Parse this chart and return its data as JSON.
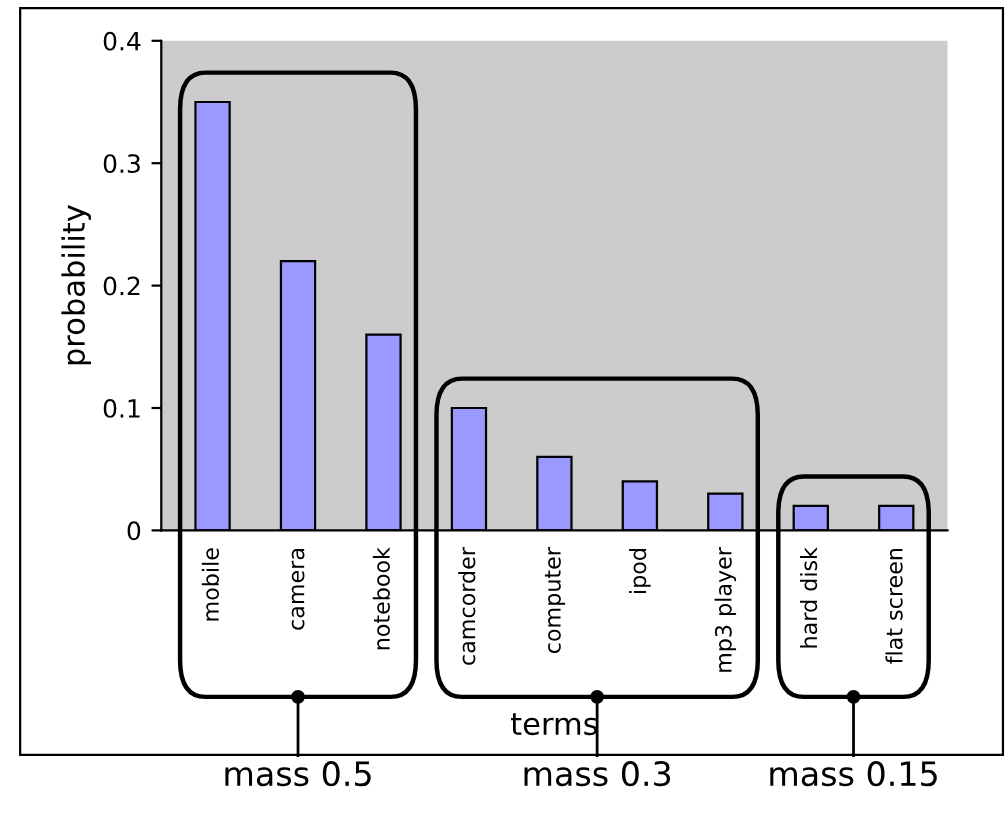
{
  "chart_data": {
    "type": "bar",
    "xlabel": "terms",
    "ylabel": "probability",
    "categories": [
      "mobile",
      "camera",
      "notebook",
      "camcorder",
      "computer",
      "ipod",
      "mp3 player",
      "hard disk",
      "flat screen"
    ],
    "values": [
      0.35,
      0.22,
      0.16,
      0.1,
      0.06,
      0.04,
      0.03,
      0.02,
      0.02
    ],
    "color": "#9999ff",
    "ylim": [
      0,
      0.4
    ],
    "yticks": [
      0,
      0.1,
      0.2,
      0.3,
      0.4
    ],
    "grid": false,
    "legend": false,
    "annotations": [
      "mass 0.5",
      "mass 0.3",
      "mass 0.15"
    ]
  }
}
